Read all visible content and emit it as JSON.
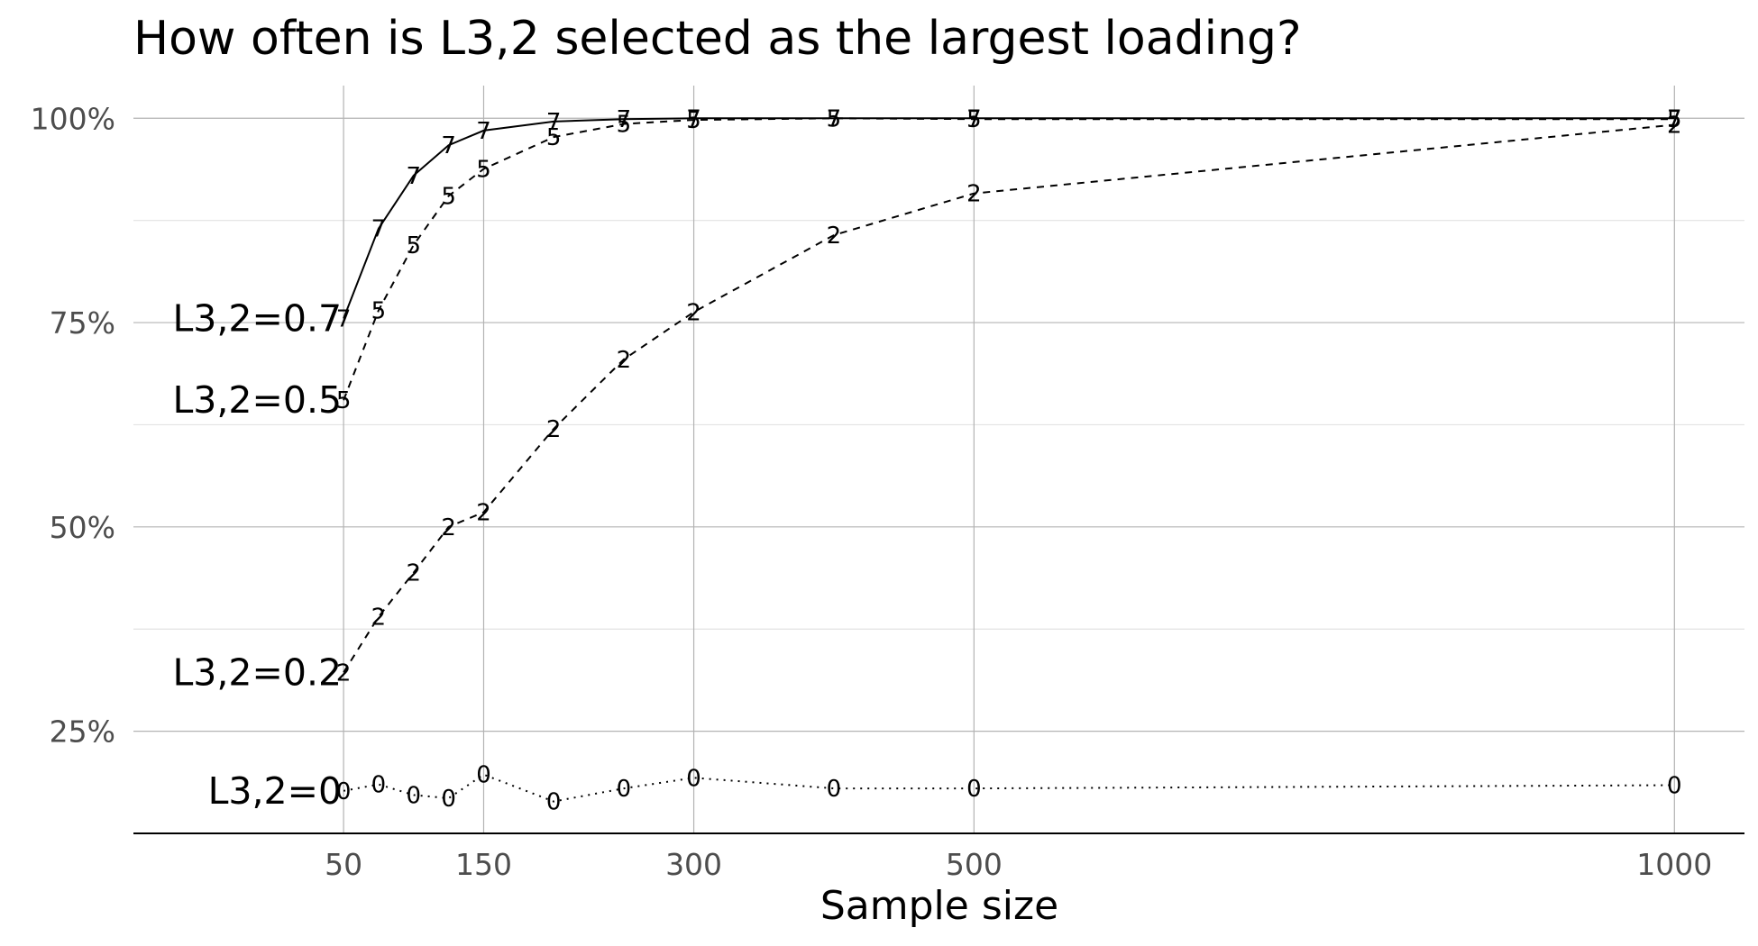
{
  "chart_data": {
    "type": "line",
    "title": "How often is L3,2 selected as the largest loading?",
    "xlabel": "Sample size",
    "ylabel": "",
    "x": [
      50,
      75,
      100,
      125,
      150,
      200,
      250,
      300,
      400,
      500,
      1000
    ],
    "xticks": [
      50,
      150,
      300,
      500,
      1000
    ],
    "xtick_labels": [
      "50",
      "150",
      "300",
      "500",
      "1000"
    ],
    "xlim": [
      -100,
      1050
    ],
    "yticks": [
      0.25,
      0.5,
      0.75,
      1.0
    ],
    "ytick_labels": [
      "25%",
      "50%",
      "75%",
      "100%"
    ],
    "ylim": [
      0.125,
      1.04
    ],
    "grid": true,
    "legend": "none",
    "series": [
      {
        "name": "L3,2=0.7",
        "marker": "7",
        "dash": "solid",
        "values": [
          0.755,
          0.865,
          0.93,
          0.967,
          0.985,
          0.996,
          0.999,
          1.0,
          1.0,
          1.0,
          1.0
        ]
      },
      {
        "name": "L3,2=0.5",
        "marker": "5",
        "dash": "dashed",
        "values": [
          0.655,
          0.765,
          0.845,
          0.905,
          0.938,
          0.977,
          0.993,
          0.998,
          1.0,
          0.999,
          0.999
        ]
      },
      {
        "name": "L3,2=0.2",
        "marker": "2",
        "dash": "dashed",
        "values": [
          0.322,
          0.39,
          0.444,
          0.5,
          0.518,
          0.62,
          0.705,
          0.763,
          0.857,
          0.908,
          0.992
        ]
      },
      {
        "name": "L3,2=0",
        "marker": "0",
        "dash": "dotted",
        "values": [
          0.177,
          0.185,
          0.172,
          0.168,
          0.197,
          0.164,
          0.18,
          0.193,
          0.18,
          0.18,
          0.184
        ]
      }
    ]
  }
}
